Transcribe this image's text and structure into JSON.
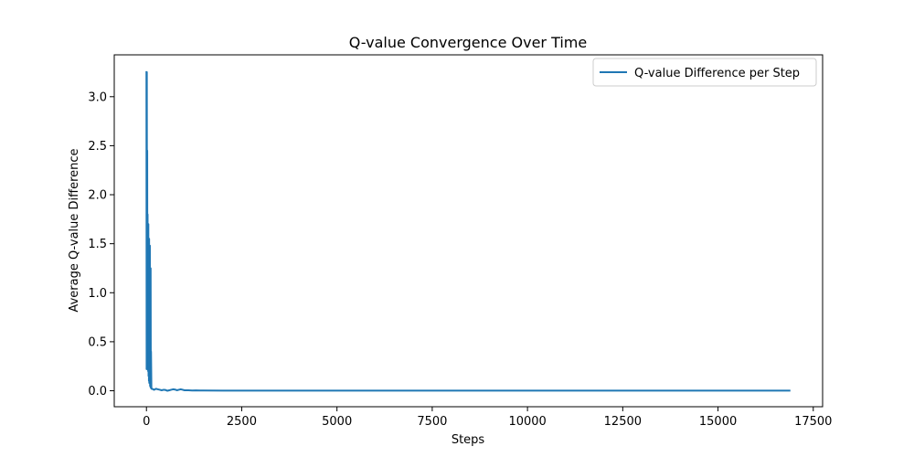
{
  "chart_data": {
    "type": "line",
    "title": "Q-value Convergence Over Time",
    "xlabel": "Steps",
    "ylabel": "Average Q-value Difference",
    "xlim": [
      -845,
      17745
    ],
    "ylim": [
      -0.163,
      3.427
    ],
    "xticks": [
      0,
      2500,
      5000,
      7500,
      10000,
      12500,
      15000,
      17500
    ],
    "xtick_labels": [
      "0",
      "2500",
      "5000",
      "7500",
      "10000",
      "12500",
      "15000",
      "17500"
    ],
    "yticks": [
      0.0,
      0.5,
      1.0,
      1.5,
      2.0,
      2.5,
      3.0
    ],
    "ytick_labels": [
      "0.0",
      "0.5",
      "1.0",
      "1.5",
      "2.0",
      "2.5",
      "3.0"
    ],
    "grid": false,
    "legend_position": "top-right",
    "series": [
      {
        "name": "Q-value Difference per Step",
        "color": "#1f77b4",
        "x": [
          0,
          5,
          10,
          15,
          20,
          25,
          30,
          35,
          40,
          45,
          50,
          55,
          60,
          65,
          70,
          75,
          80,
          85,
          90,
          95,
          100,
          105,
          110,
          115,
          120,
          130,
          150,
          200,
          250,
          300,
          350,
          400,
          450,
          500,
          550,
          600,
          650,
          700,
          750,
          800,
          850,
          900,
          950,
          1000,
          1100,
          1200,
          1300,
          1400,
          1500,
          2000,
          3000,
          4000,
          5000,
          6000,
          7000,
          8000,
          9000,
          10000,
          11000,
          12000,
          13000,
          14000,
          15000,
          16000,
          16900
        ],
        "y": [
          3.26,
          0.22,
          3.25,
          0.4,
          2.45,
          0.35,
          1.8,
          0.25,
          1.5,
          0.2,
          1.7,
          0.15,
          1.3,
          0.1,
          1.55,
          0.08,
          1.2,
          0.1,
          1.48,
          0.05,
          0.9,
          0.04,
          1.25,
          0.03,
          0.4,
          0.02,
          0.02,
          0.01,
          0.02,
          0.015,
          0.01,
          0.005,
          0.01,
          0.008,
          0.0,
          0.005,
          0.01,
          0.015,
          0.012,
          0.005,
          0.01,
          0.015,
          0.01,
          0.005,
          0.005,
          0.003,
          0.004,
          0.002,
          0.002,
          0.001,
          0.001,
          0.001,
          0.001,
          0.001,
          0.001,
          0.001,
          0.001,
          0.001,
          0.001,
          0.001,
          0.001,
          0.001,
          0.001,
          0.001,
          0.001
        ]
      }
    ]
  }
}
